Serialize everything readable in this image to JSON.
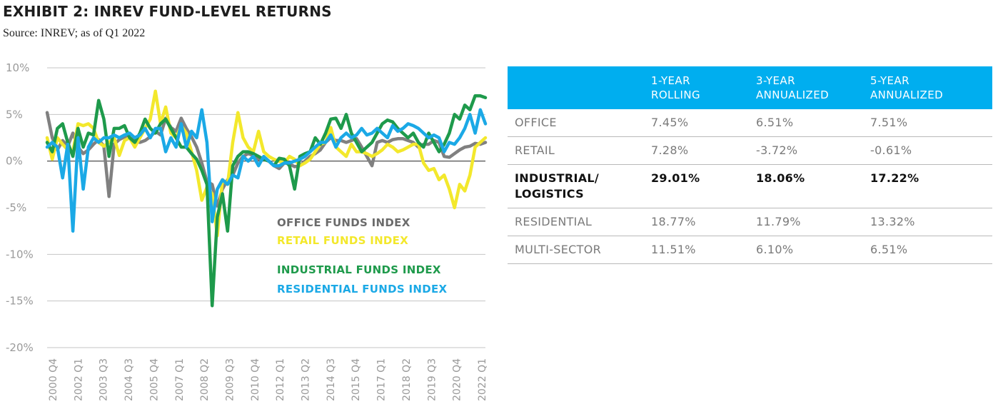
{
  "title": "EXHIBIT 2: INREV FUND-LEVEL RETURNS",
  "subtitle": "Source: INREV; as of Q1 2022",
  "chart_data": {
    "type": "line",
    "ylim": [
      -20,
      10
    ],
    "y_ticks": [
      "10%",
      "5%",
      "0%",
      "-5%",
      "-10%",
      "-15%",
      "-20%"
    ],
    "x_tick_labels": [
      "2000 Q4",
      "2002 Q1",
      "2003 Q3",
      "2004 Q3",
      "2005 Q4",
      "2007 Q1",
      "2008 Q2",
      "2009 Q3",
      "2010 Q4",
      "2012 Q1",
      "2013 Q2",
      "2014 Q3",
      "2015 Q4",
      "2017 Q1",
      "2018 Q2",
      "2019 Q3",
      "2020 Q4",
      "2022 Q1"
    ],
    "x_start": "2000 Q4",
    "x_end": "2022 Q1",
    "series": [
      {
        "name": "OFFICE FUNDS INDEX",
        "color": "#808080",
        "values": [
          5.2,
          2.5,
          1.2,
          2.2,
          1.6,
          3.0,
          1.5,
          0.8,
          1.2,
          1.8,
          2.3,
          1.6,
          -3.8,
          1.8,
          2.3,
          2.6,
          2.5,
          2.2,
          2.0,
          2.2,
          2.6,
          3.2,
          2.8,
          4.6,
          3.6,
          3.2,
          4.6,
          3.5,
          2.6,
          1.5,
          -0.2,
          -2.2,
          -2.5,
          -4.8,
          -3.0,
          -2.0,
          -1.5,
          -0.2,
          0.5,
          0.8,
          0.6,
          0.2,
          0.2,
          0.0,
          -0.5,
          -0.8,
          -0.2,
          -0.3,
          -0.6,
          -0.5,
          0.0,
          0.5,
          0.8,
          1.2,
          2.0,
          2.5,
          2.2,
          2.2,
          2.0,
          2.2,
          2.4,
          1.5,
          0.5,
          -0.5,
          2.0,
          2.2,
          2.0,
          2.3,
          2.4,
          2.4,
          2.2,
          2.0,
          1.5,
          1.8,
          1.8,
          2.2,
          2.0,
          0.5,
          0.4,
          0.8,
          1.2,
          1.5,
          1.6,
          1.9,
          1.8,
          2.0
        ]
      },
      {
        "name": "RETAIL FUNDS INDEX",
        "color": "#f3e82c",
        "values": [
          2.5,
          0.2,
          2.5,
          1.8,
          1.2,
          1.0,
          4.0,
          3.8,
          4.0,
          3.5,
          2.0,
          1.6,
          2.0,
          2.5,
          0.6,
          2.2,
          2.5,
          1.5,
          2.5,
          3.5,
          4.5,
          7.5,
          4.0,
          5.8,
          3.0,
          2.5,
          3.8,
          3.0,
          1.0,
          -1.0,
          -4.2,
          -2.8,
          -3.5,
          -8.0,
          -2.0,
          -2.5,
          2.0,
          5.2,
          2.5,
          1.5,
          1.0,
          3.2,
          1.0,
          0.5,
          0.2,
          0.0,
          -0.2,
          0.5,
          0.2,
          -0.5,
          -0.2,
          0.2,
          1.0,
          1.8,
          2.0,
          3.6,
          1.5,
          1.0,
          0.5,
          1.8,
          1.0,
          1.0,
          0.8,
          0.5,
          0.8,
          1.2,
          1.8,
          1.5,
          1.0,
          1.2,
          1.5,
          1.8,
          1.8,
          -0.2,
          -1.0,
          -0.8,
          -2.0,
          -1.5,
          -3.0,
          -5.0,
          -2.5,
          -3.2,
          -1.5,
          1.5,
          2.0,
          2.5
        ]
      },
      {
        "name": "INDUSTRIAL FUNDS INDEX",
        "color": "#1e9a4b",
        "values": [
          2.0,
          1.0,
          3.5,
          4.0,
          2.0,
          0.5,
          3.5,
          1.5,
          3.0,
          2.8,
          6.5,
          4.5,
          0.5,
          3.5,
          3.5,
          3.8,
          2.5,
          2.0,
          3.0,
          4.5,
          3.5,
          3.0,
          4.0,
          4.5,
          3.5,
          2.5,
          1.5,
          1.5,
          0.8,
          0.2,
          -1.0,
          -2.5,
          -15.5,
          -6.0,
          -3.5,
          -7.5,
          -0.5,
          0.5,
          1.0,
          1.0,
          0.8,
          0.5,
          0.2,
          0.0,
          -0.5,
          0.3,
          0.2,
          -0.5,
          -3.0,
          0.5,
          0.8,
          1.0,
          2.5,
          1.8,
          3.0,
          4.5,
          4.6,
          3.5,
          5.0,
          3.0,
          2.0,
          1.0,
          1.5,
          2.0,
          3.0,
          4.0,
          4.4,
          4.2,
          3.5,
          3.0,
          2.5,
          3.0,
          2.0,
          1.5,
          3.0,
          2.0,
          1.0,
          1.8,
          3.0,
          5.0,
          4.5,
          6.0,
          5.5,
          7.0,
          7.0,
          6.8
        ]
      },
      {
        "name": "RESIDENTIAL FUNDS INDEX",
        "color": "#1ba9e6",
        "values": [
          1.5,
          2.0,
          1.5,
          -1.8,
          1.8,
          -7.5,
          2.5,
          -3.0,
          1.5,
          2.5,
          2.0,
          2.5,
          2.5,
          2.8,
          2.5,
          2.8,
          3.0,
          2.5,
          2.8,
          3.5,
          2.5,
          3.5,
          3.5,
          1.0,
          2.5,
          1.5,
          4.0,
          1.5,
          3.2,
          2.5,
          5.5,
          2.0,
          -6.5,
          -3.0,
          -2.0,
          -2.5,
          -1.5,
          -1.8,
          0.5,
          0.0,
          0.5,
          -0.5,
          0.5,
          0.0,
          -0.5,
          -0.5,
          -0.2,
          -0.2,
          0.0,
          0.2,
          0.5,
          1.0,
          1.5,
          2.0,
          2.0,
          2.8,
          1.5,
          2.5,
          3.0,
          2.5,
          2.8,
          3.5,
          2.8,
          3.0,
          3.5,
          3.0,
          2.5,
          3.8,
          3.2,
          3.5,
          4.0,
          3.8,
          3.5,
          3.0,
          2.5,
          2.8,
          2.5,
          1.0,
          2.0,
          1.8,
          2.5,
          3.5,
          5.0,
          3.0,
          5.5,
          4.0
        ]
      }
    ]
  },
  "table": {
    "headers": [
      "",
      "1-YEAR\nROLLING",
      "3-YEAR\nANNUALIZED",
      "5-YEAR\nANNUALIZED"
    ],
    "rows": [
      {
        "label": "OFFICE",
        "one_year": "7.45%",
        "three_year": "6.51%",
        "five_year": "7.51%",
        "highlight": false
      },
      {
        "label": "RETAIL",
        "one_year": "7.28%",
        "three_year": "-3.72%",
        "five_year": "-0.61%",
        "highlight": false
      },
      {
        "label": "INDUSTRIAL/\nLOGISTICS",
        "one_year": "29.01%",
        "three_year": "18.06%",
        "five_year": "17.22%",
        "highlight": true
      },
      {
        "label": "RESIDENTIAL",
        "one_year": "18.77%",
        "three_year": "11.79%",
        "five_year": "13.32%",
        "highlight": false
      },
      {
        "label": "MULTI-SECTOR",
        "one_year": "11.51%",
        "three_year": "6.10%",
        "five_year": "6.51%",
        "highlight": false
      }
    ]
  }
}
